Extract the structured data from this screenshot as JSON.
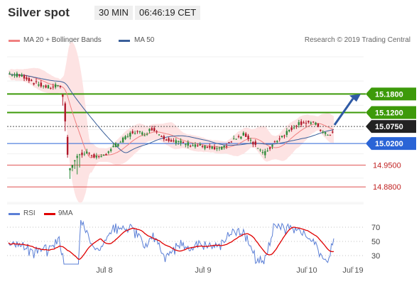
{
  "header": {
    "title": "Silver spot",
    "timeframe": "30 MIN",
    "time": "06:46:19 CET"
  },
  "legend": {
    "ma20_label": "MA 20 + Bollinger Bands",
    "ma50_label": "MA 50",
    "credit": "Research © 2019 Trading Central",
    "ma20_color": "#f08080",
    "ma50_color": "#3a5f9a"
  },
  "rsi_legend": {
    "rsi_label": "RSI",
    "ma9_label": "9MA",
    "rsi_color": "#5b7fd6",
    "ma9_color": "#e00000"
  },
  "chart_data": [
    {
      "type": "line",
      "series": [
        {
          "name": "MA 20 + Bollinger Bands"
        },
        {
          "name": "MA 50"
        }
      ],
      "y_ticks": [
        14.88,
        14.95,
        15.02,
        15.075,
        15.12,
        15.18
      ],
      "price_levels": [
        {
          "label": "15.1800",
          "value": 15.18,
          "color": "#3d9a0a",
          "style": "resistance"
        },
        {
          "label": "15.1200",
          "value": 15.12,
          "color": "#3d9a0a",
          "style": "resistance"
        },
        {
          "label": "15.0750",
          "value": 15.075,
          "color": "#222222",
          "style": "current"
        },
        {
          "label": "15.0200",
          "value": 15.02,
          "color": "#2a64d6",
          "style": "pivot"
        },
        {
          "label": "14.9500",
          "value": 14.95,
          "color": "#e05050",
          "style": "support"
        },
        {
          "label": "14.8800",
          "value": 14.88,
          "color": "#e05050",
          "style": "support"
        }
      ],
      "x_tick_labels": [
        "Jul 8",
        "Jul 9",
        "Jul 10",
        "Jul 19"
      ],
      "grid": true,
      "candlestick": true
    },
    {
      "type": "line",
      "series": [
        {
          "name": "RSI"
        },
        {
          "name": "9MA"
        }
      ],
      "y_ticks": [
        30,
        50,
        70
      ],
      "ylim": [
        15,
        85
      ]
    }
  ]
}
